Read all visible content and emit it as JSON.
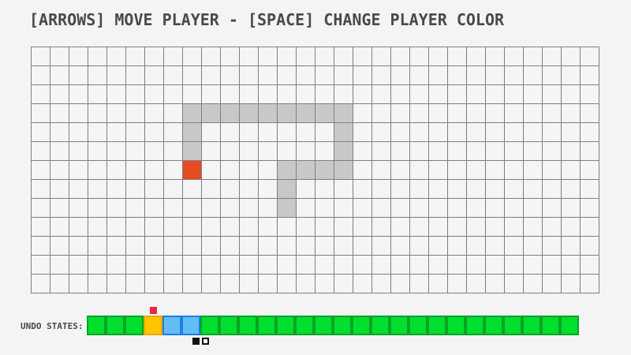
{
  "title": "[ARROWS] MOVE PLAYER - [SPACE] CHANGE PLAYER COLOR",
  "colors": {
    "background": "#f4f4f4",
    "cell_bg": "#f5f5f5",
    "grid_line": "#7f7f7f",
    "trail": "#c8c8c8",
    "player": "#e44d26",
    "title_text": "#4a4a4a",
    "undo_green": "#00df2e",
    "undo_green_border": "#0aa227",
    "undo_orange": "#fdc500",
    "undo_orange_border": "#f0a500",
    "undo_blue": "#64bdf2",
    "undo_blue_border": "#1d7fe3",
    "marker_red": "#e12b38",
    "dot_black": "#111111"
  },
  "grid": {
    "cols": 30,
    "rows": 13,
    "trail_cells": [
      [
        8,
        3
      ],
      [
        9,
        3
      ],
      [
        10,
        3
      ],
      [
        11,
        3
      ],
      [
        12,
        3
      ],
      [
        13,
        3
      ],
      [
        14,
        3
      ],
      [
        15,
        3
      ],
      [
        16,
        3
      ],
      [
        8,
        4
      ],
      [
        16,
        4
      ],
      [
        8,
        5
      ],
      [
        16,
        5
      ],
      [
        13,
        6
      ],
      [
        14,
        6
      ],
      [
        15,
        6
      ],
      [
        16,
        6
      ],
      [
        13,
        7
      ],
      [
        13,
        8
      ]
    ],
    "player_cell": [
      8,
      6
    ]
  },
  "undo_bar": {
    "label": "UNDO STATES:",
    "cells": [
      "green",
      "green",
      "green",
      "orange",
      "blue",
      "blue",
      "green",
      "green",
      "green",
      "green",
      "green",
      "green",
      "green",
      "green",
      "green",
      "green",
      "green",
      "green",
      "green",
      "green",
      "green",
      "green",
      "green",
      "green",
      "green",
      "green"
    ],
    "marker_index": 3,
    "page_dots": [
      "filled",
      "outline"
    ]
  }
}
